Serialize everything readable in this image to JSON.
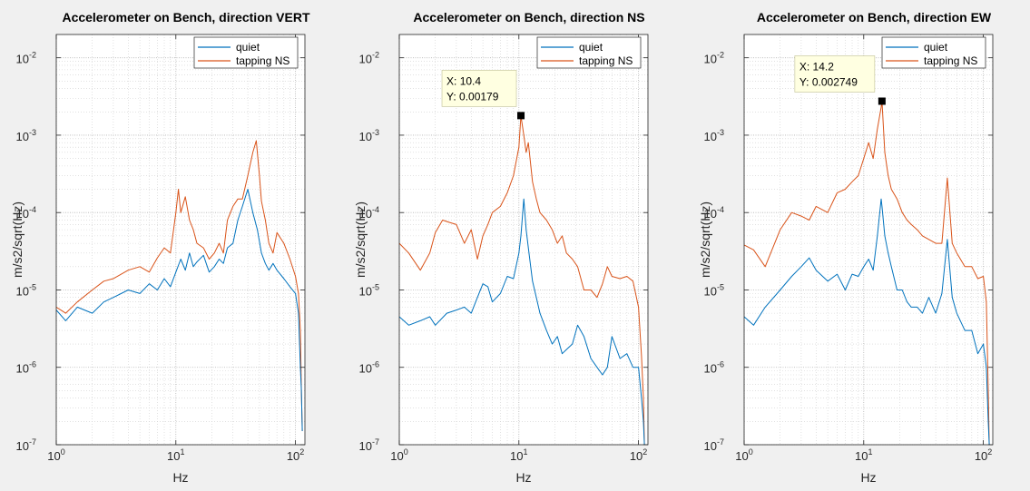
{
  "chart_data": [
    {
      "type": "line",
      "title": "Accelerometer on Bench, direction VERT",
      "xlabel": "Hz",
      "ylabel": "m/s2/sqrt(Hz)",
      "xscale": "log",
      "yscale": "log",
      "xlim": [
        1,
        120
      ],
      "ylim": [
        1e-07,
        0.02
      ],
      "grid": true,
      "legend": "top-right",
      "series": [
        {
          "name": "quiet",
          "color": "#0072bd",
          "x": [
            1,
            1.2,
            1.5,
            2,
            2.5,
            3,
            4,
            5,
            6,
            7,
            8,
            9,
            10,
            11,
            12,
            13,
            14,
            15,
            17,
            19,
            21,
            23,
            25,
            27,
            30,
            33,
            36,
            40,
            44,
            48,
            52,
            56,
            60,
            65,
            70,
            80,
            90,
            100,
            106,
            110,
            112,
            114
          ],
          "y": [
            5.5e-06,
            4e-06,
            6e-06,
            5e-06,
            7e-06,
            8e-06,
            1e-05,
            9e-06,
            1.2e-05,
            1e-05,
            1.4e-05,
            1.1e-05,
            1.7e-05,
            2.5e-05,
            1.8e-05,
            3e-05,
            2e-05,
            2.3e-05,
            2.8e-05,
            1.7e-05,
            2e-05,
            2.5e-05,
            2.2e-05,
            3.5e-05,
            4e-05,
            8e-05,
            0.00012,
            0.0002,
            0.0001,
            6e-05,
            3e-05,
            2.2e-05,
            1.8e-05,
            2.2e-05,
            1.8e-05,
            1.4e-05,
            1.1e-05,
            9e-06,
            5e-06,
            1e-06,
            5e-07,
            1.5e-07
          ]
        },
        {
          "name": "tapping NS",
          "color": "#d95319",
          "x": [
            1,
            1.2,
            1.5,
            2,
            2.5,
            3,
            4,
            5,
            6,
            7,
            8,
            9,
            10,
            10.5,
            11,
            12,
            13,
            14,
            15,
            17,
            19,
            21,
            23,
            25,
            27,
            30,
            33,
            36,
            40,
            44,
            47,
            50,
            52,
            56,
            60,
            65,
            70,
            80,
            90,
            100,
            106,
            110,
            112,
            114
          ],
          "y": [
            6e-06,
            5e-06,
            7e-06,
            1e-05,
            1.3e-05,
            1.4e-05,
            1.8e-05,
            2e-05,
            1.7e-05,
            2.6e-05,
            3.5e-05,
            3e-05,
            0.0001,
            0.0002,
            0.0001,
            0.00016,
            8e-05,
            6e-05,
            4e-05,
            3.5e-05,
            2.5e-05,
            3e-05,
            4e-05,
            3e-05,
            8e-05,
            0.00012,
            0.00015,
            0.00015,
            0.0003,
            0.0006,
            0.00085,
            0.0003,
            0.00014,
            8e-05,
            4e-05,
            3e-05,
            5.5e-05,
            4e-05,
            2.5e-05,
            1.5e-05,
            9e-06,
            3e-06,
            5e-07,
            1.5e-07
          ]
        }
      ],
      "datatip": null
    },
    {
      "type": "line",
      "title": "Accelerometer on Bench, direction NS",
      "xlabel": "Hz",
      "ylabel": "m/s2/sqrt(Hz)",
      "xscale": "log",
      "yscale": "log",
      "xlim": [
        1,
        120
      ],
      "ylim": [
        1e-07,
        0.02
      ],
      "grid": true,
      "legend": "top-right",
      "series": [
        {
          "name": "quiet",
          "color": "#0072bd",
          "x": [
            1,
            1.2,
            1.5,
            1.8,
            2,
            2.5,
            3,
            3.5,
            4,
            4.5,
            5,
            5.5,
            6,
            7,
            8,
            9,
            10,
            10.4,
            11,
            11.5,
            12,
            13,
            14,
            15,
            17,
            19,
            21,
            23,
            25,
            28,
            31,
            35,
            40,
            45,
            50,
            55,
            60,
            70,
            80,
            90,
            100,
            106,
            110,
            112
          ],
          "y": [
            4.5e-06,
            3.5e-06,
            4e-06,
            4.5e-06,
            3.5e-06,
            5e-06,
            5.5e-06,
            6e-06,
            5e-06,
            8e-06,
            1.2e-05,
            1.1e-05,
            7e-06,
            9e-06,
            1.5e-05,
            1.4e-05,
            3e-05,
            5e-05,
            0.00015,
            6e-05,
            3.5e-05,
            1.3e-05,
            8e-06,
            5e-06,
            3e-06,
            2e-06,
            2.5e-06,
            1.5e-06,
            1.7e-06,
            2e-06,
            3.5e-06,
            2.5e-06,
            1.3e-06,
            1e-06,
            8e-07,
            1e-06,
            2.5e-06,
            1.3e-06,
            1.5e-06,
            1e-06,
            1e-06,
            4e-07,
            2e-07,
            1e-07
          ]
        },
        {
          "name": "tapping NS",
          "color": "#d95319",
          "x": [
            1,
            1.2,
            1.5,
            1.8,
            2,
            2.3,
            2.6,
            3,
            3.5,
            4,
            4.5,
            5,
            5.5,
            6,
            7,
            8,
            9,
            10,
            10.4,
            11,
            11.5,
            12,
            13,
            14,
            15,
            17,
            19,
            21,
            23,
            25,
            28,
            31,
            35,
            40,
            45,
            50,
            55,
            60,
            70,
            80,
            90,
            100,
            106,
            110,
            112
          ],
          "y": [
            4e-05,
            3e-05,
            1.8e-05,
            3e-05,
            5.5e-05,
            8e-05,
            7.5e-05,
            7e-05,
            4e-05,
            6e-05,
            2.5e-05,
            5e-05,
            7e-05,
            0.0001,
            0.00012,
            0.00018,
            0.0003,
            0.0007,
            0.00179,
            0.001,
            0.0006,
            0.0008,
            0.00025,
            0.00015,
            0.0001,
            8e-05,
            6e-05,
            4e-05,
            5e-05,
            3e-05,
            2.5e-05,
            2e-05,
            1e-05,
            1e-05,
            8e-06,
            1.2e-05,
            2e-05,
            1.5e-05,
            1.4e-05,
            1.5e-05,
            1.3e-05,
            6e-06,
            1.4e-06,
            4e-07,
            1e-07
          ]
        }
      ],
      "datatip": {
        "x": 10.4,
        "y": 0.00179,
        "x_label": "X: 10.4",
        "y_label": "Y: 0.00179"
      }
    },
    {
      "type": "line",
      "title": "Accelerometer on Bench, direction EW",
      "xlabel": "Hz",
      "ylabel": "m/s2/sqrt(Hz)",
      "xscale": "log",
      "yscale": "log",
      "xlim": [
        1,
        120
      ],
      "ylim": [
        1e-07,
        0.02
      ],
      "grid": true,
      "legend": "top-right",
      "series": [
        {
          "name": "quiet",
          "color": "#0072bd",
          "x": [
            1,
            1.2,
            1.5,
            2,
            2.5,
            3,
            3.5,
            4,
            5,
            6,
            7,
            8,
            9,
            10,
            11,
            12,
            13,
            14,
            14.2,
            15,
            16,
            17,
            19,
            21,
            23,
            25,
            28,
            31,
            35,
            40,
            45,
            50,
            55,
            60,
            70,
            80,
            90,
            100,
            106,
            110,
            112
          ],
          "y": [
            4.5e-06,
            3.5e-06,
            6e-06,
            1e-05,
            1.5e-05,
            2e-05,
            2.6e-05,
            1.8e-05,
            1.3e-05,
            1.6e-05,
            1e-05,
            1.6e-05,
            1.5e-05,
            2e-05,
            2.5e-05,
            1.8e-05,
            5e-05,
            0.00015,
            0.00012,
            5e-05,
            3e-05,
            2e-05,
            1e-05,
            1e-05,
            7e-06,
            6e-06,
            6e-06,
            5e-06,
            8e-06,
            5e-06,
            9e-06,
            4.5e-05,
            8e-06,
            5e-06,
            3e-06,
            3e-06,
            1.5e-06,
            2e-06,
            1e-06,
            2e-07,
            1e-07
          ]
        },
        {
          "name": "tapping NS",
          "color": "#d95319",
          "x": [
            1,
            1.2,
            1.5,
            2,
            2.5,
            3,
            3.5,
            4,
            5,
            6,
            7,
            8,
            9,
            10,
            11,
            12,
            13,
            14,
            14.2,
            15,
            16,
            17,
            19,
            21,
            23,
            25,
            28,
            31,
            35,
            40,
            45,
            50,
            55,
            60,
            70,
            80,
            90,
            100,
            106,
            110,
            112
          ],
          "y": [
            3.8e-05,
            3.3e-05,
            2e-05,
            6e-05,
            0.0001,
            9e-05,
            8e-05,
            0.00012,
            0.0001,
            0.00018,
            0.0002,
            0.00025,
            0.0003,
            0.0005,
            0.0008,
            0.0005,
            0.0012,
            0.0023,
            0.002749,
            0.0006,
            0.0003,
            0.0002,
            0.00015,
            0.0001,
            8e-05,
            7e-05,
            6e-05,
            5e-05,
            4.5e-05,
            4e-05,
            4e-05,
            0.00028,
            4e-05,
            3e-05,
            2e-05,
            2e-05,
            1.4e-05,
            1.5e-05,
            7e-06,
            5e-07,
            1e-07
          ]
        }
      ],
      "datatip": {
        "x": 14.2,
        "y": 0.002749,
        "x_label": "X: 14.2",
        "y_label": "Y: 0.002749"
      }
    }
  ]
}
